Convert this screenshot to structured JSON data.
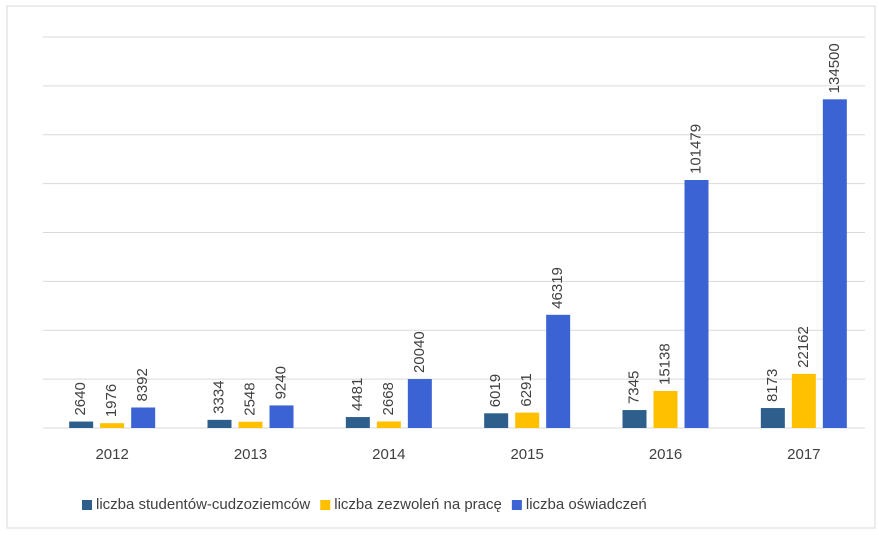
{
  "chart_data": {
    "type": "bar",
    "categories": [
      "2012",
      "2013",
      "2014",
      "2015",
      "2016",
      "2017"
    ],
    "series": [
      {
        "name": "liczba studentów-cudzoziemców",
        "color": "#2e5f8c",
        "values": [
          2640,
          3334,
          4481,
          6019,
          7345,
          8173
        ]
      },
      {
        "name": "liczba zezwoleń na pracę",
        "color": "#ffc000",
        "values": [
          1976,
          2548,
          2668,
          6291,
          15138,
          22162
        ]
      },
      {
        "name": "liczba oświadczeń",
        "color": "#3b63d3",
        "values": [
          8392,
          9240,
          20040,
          46319,
          101479,
          134500
        ]
      }
    ],
    "ylim": [
      0,
      160000
    ],
    "yticks": [
      0,
      20000,
      40000,
      60000,
      80000,
      100000,
      120000,
      140000,
      160000
    ],
    "grid": true
  }
}
